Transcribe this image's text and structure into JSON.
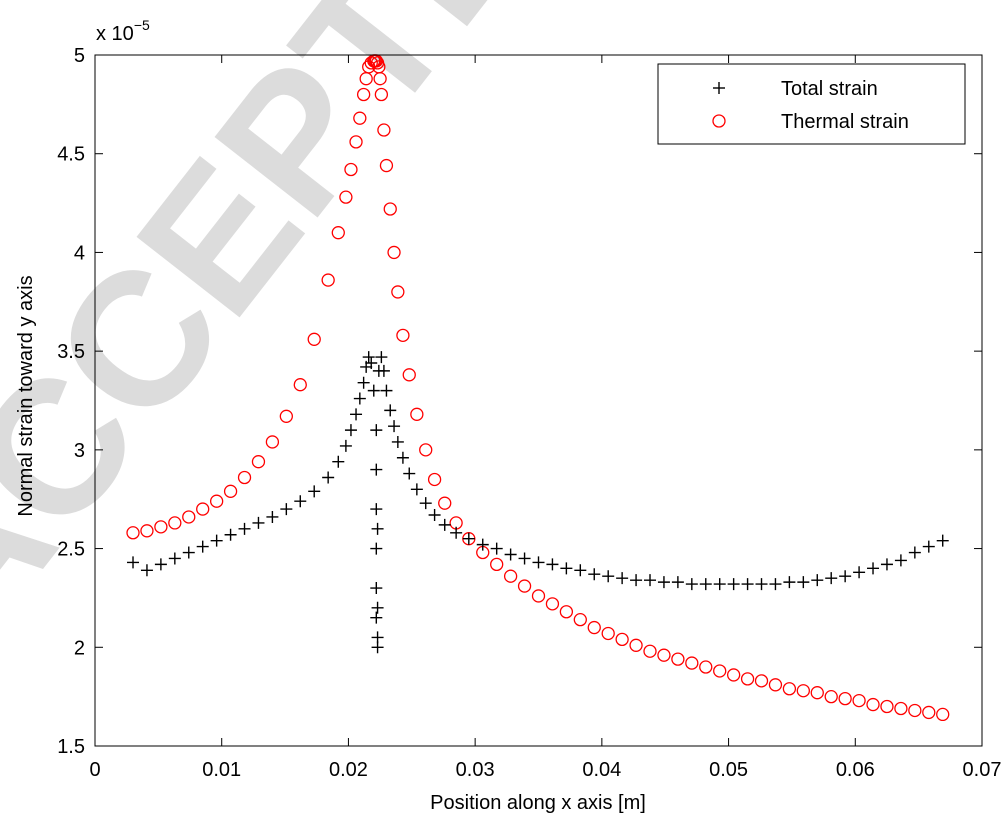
{
  "chart_data": {
    "type": "scatter",
    "xlabel": "Position along x axis [m]",
    "ylabel": "Normal strain toward y axis",
    "xlim": [
      0,
      0.07
    ],
    "ylim": [
      1.5,
      5
    ],
    "y_exponent_label": "x 10",
    "y_exponent_power": "−5",
    "y_scale_factor": 1e-05,
    "x_ticks": [
      0,
      0.01,
      0.02,
      0.03,
      0.04,
      0.05,
      0.06,
      0.07
    ],
    "x_tick_labels": [
      "0",
      "0.01",
      "0.02",
      "0.03",
      "0.04",
      "0.05",
      "0.06",
      "0.07"
    ],
    "y_ticks": [
      1.5,
      2,
      2.5,
      3,
      3.5,
      4,
      4.5,
      5
    ],
    "y_tick_labels": [
      "1.5",
      "2",
      "2.5",
      "3",
      "3.5",
      "4",
      "4.5",
      "5"
    ],
    "grid": false,
    "legend_position": "top-right",
    "series": [
      {
        "name": "Total strain",
        "marker": "plus",
        "color": "#000000",
        "x": [
          0.003,
          0.0041,
          0.0052,
          0.0063,
          0.0074,
          0.0085,
          0.0096,
          0.0107,
          0.0118,
          0.0129,
          0.014,
          0.0151,
          0.0162,
          0.0173,
          0.0184,
          0.0192,
          0.0198,
          0.0202,
          0.0206,
          0.0209,
          0.0212,
          0.0214,
          0.0216,
          0.0218,
          0.022,
          0.0222,
          0.0222,
          0.0222,
          0.0222,
          0.0222,
          0.0222,
          0.0223,
          0.0223,
          0.0223,
          0.0223,
          0.0224,
          0.0226,
          0.0228,
          0.023,
          0.0233,
          0.0236,
          0.0239,
          0.0243,
          0.0248,
          0.0254,
          0.0261,
          0.0268,
          0.0276,
          0.0285,
          0.0295,
          0.0306,
          0.0317,
          0.0328,
          0.0339,
          0.035,
          0.0361,
          0.0372,
          0.0383,
          0.0394,
          0.0405,
          0.0416,
          0.0427,
          0.0438,
          0.0449,
          0.046,
          0.0471,
          0.0482,
          0.0493,
          0.0504,
          0.0515,
          0.0526,
          0.0537,
          0.0548,
          0.0559,
          0.057,
          0.0581,
          0.0592,
          0.0603,
          0.0614,
          0.0625,
          0.0636,
          0.0647,
          0.0658,
          0.0669
        ],
        "y": [
          2.43,
          2.39,
          2.42,
          2.45,
          2.48,
          2.51,
          2.54,
          2.57,
          2.6,
          2.63,
          2.66,
          2.7,
          2.74,
          2.79,
          2.86,
          2.94,
          3.02,
          3.1,
          3.18,
          3.26,
          3.34,
          3.42,
          3.47,
          3.44,
          3.3,
          3.1,
          2.9,
          2.7,
          2.5,
          2.3,
          2.15,
          2.05,
          2.0,
          2.2,
          2.6,
          3.4,
          3.47,
          3.4,
          3.3,
          3.2,
          3.12,
          3.04,
          2.96,
          2.88,
          2.8,
          2.73,
          2.67,
          2.62,
          2.58,
          2.55,
          2.52,
          2.5,
          2.47,
          2.45,
          2.43,
          2.42,
          2.4,
          2.39,
          2.37,
          2.36,
          2.35,
          2.34,
          2.34,
          2.33,
          2.33,
          2.32,
          2.32,
          2.32,
          2.32,
          2.32,
          2.32,
          2.32,
          2.33,
          2.33,
          2.34,
          2.35,
          2.36,
          2.38,
          2.4,
          2.42,
          2.44,
          2.48,
          2.51,
          2.54
        ]
      },
      {
        "name": "Thermal strain",
        "marker": "circle",
        "color": "#ff0000",
        "x": [
          0.003,
          0.0041,
          0.0052,
          0.0063,
          0.0074,
          0.0085,
          0.0096,
          0.0107,
          0.0118,
          0.0129,
          0.014,
          0.0151,
          0.0162,
          0.0173,
          0.0184,
          0.0192,
          0.0198,
          0.0202,
          0.0206,
          0.0209,
          0.0212,
          0.0214,
          0.0216,
          0.0218,
          0.022,
          0.0221,
          0.0222,
          0.0223,
          0.0224,
          0.0225,
          0.0226,
          0.0228,
          0.023,
          0.0233,
          0.0236,
          0.0239,
          0.0243,
          0.0248,
          0.0254,
          0.0261,
          0.0268,
          0.0276,
          0.0285,
          0.0295,
          0.0306,
          0.0317,
          0.0328,
          0.0339,
          0.035,
          0.0361,
          0.0372,
          0.0383,
          0.0394,
          0.0405,
          0.0416,
          0.0427,
          0.0438,
          0.0449,
          0.046,
          0.0471,
          0.0482,
          0.0493,
          0.0504,
          0.0515,
          0.0526,
          0.0537,
          0.0548,
          0.0559,
          0.057,
          0.0581,
          0.0592,
          0.0603,
          0.0614,
          0.0625,
          0.0636,
          0.0647,
          0.0658,
          0.0669
        ],
        "y": [
          2.58,
          2.59,
          2.61,
          2.63,
          2.66,
          2.7,
          2.74,
          2.79,
          2.86,
          2.94,
          3.04,
          3.17,
          3.33,
          3.56,
          3.86,
          4.1,
          4.28,
          4.42,
          4.56,
          4.68,
          4.8,
          4.88,
          4.94,
          4.96,
          4.97,
          4.97,
          4.97,
          4.96,
          4.94,
          4.88,
          4.8,
          4.62,
          4.44,
          4.22,
          4.0,
          3.8,
          3.58,
          3.38,
          3.18,
          3.0,
          2.85,
          2.73,
          2.63,
          2.55,
          2.48,
          2.42,
          2.36,
          2.31,
          2.26,
          2.22,
          2.18,
          2.14,
          2.1,
          2.07,
          2.04,
          2.01,
          1.98,
          1.96,
          1.94,
          1.92,
          1.9,
          1.88,
          1.86,
          1.84,
          1.83,
          1.81,
          1.79,
          1.78,
          1.77,
          1.75,
          1.74,
          1.73,
          1.71,
          1.7,
          1.69,
          1.68,
          1.67,
          1.66
        ]
      }
    ]
  },
  "watermark": {
    "text": "ACCEPTED",
    "color": "#d9d9d9"
  }
}
